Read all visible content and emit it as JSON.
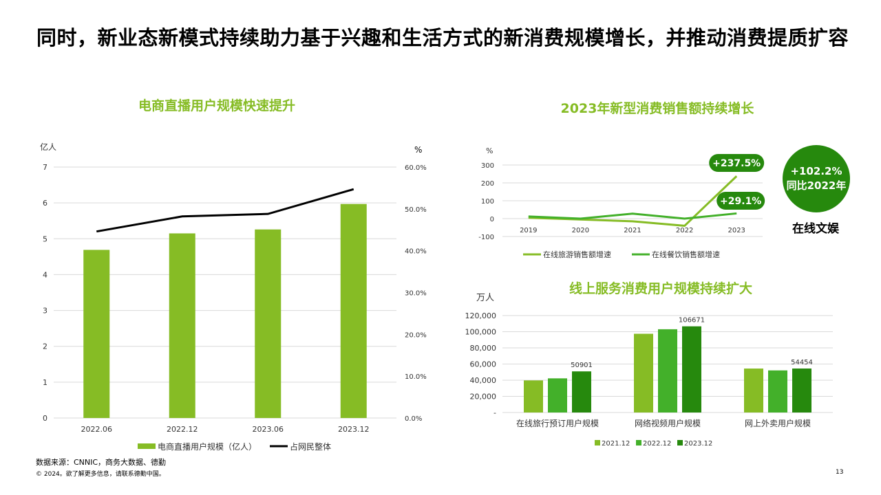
{
  "page": {
    "title": "同时，新业态新模式持续助力基于兴趣和生活方式的新消费规模增长，并推动消费提质扩容",
    "source": "数据来源：CNNIC，商务大数据、德勤",
    "copyright": "© 2024。欲了解更多信息，请联系德勤中国。",
    "page_number": "13",
    "colors": {
      "accent": "#86bc25",
      "mid_green": "#43b02a",
      "dark_green": "#26890d",
      "line": "#000000"
    }
  },
  "highlight": {
    "line1": "+102.2%",
    "line2": "同比2022年",
    "caption": "在线文娱"
  },
  "chart_data": [
    {
      "id": "livestream",
      "type": "bar",
      "title": "电商直播用户规模快速提升",
      "ylabel": "亿人",
      "y2label": "%",
      "categories": [
        "2022.06",
        "2022.12",
        "2023.06",
        "2023.12"
      ],
      "ylim": [
        0,
        7
      ],
      "yticks": [
        "0",
        "1",
        "2",
        "3",
        "4",
        "5",
        "6",
        "7"
      ],
      "y2lim": [
        0,
        60
      ],
      "y2ticks": [
        "0.0%",
        "10.0%",
        "20.0%",
        "30.0%",
        "40.0%",
        "50.0%",
        "60.0%"
      ],
      "series": [
        {
          "name": "电商直播用户规模（亿人）",
          "type": "bar",
          "axis": "left",
          "color": "#86bc25",
          "values": [
            4.69,
            5.15,
            5.26,
            5.97
          ]
        },
        {
          "name": "占网民整体",
          "type": "line",
          "axis": "right",
          "color": "#000000",
          "values": [
            44.6,
            48.2,
            48.8,
            54.7
          ]
        }
      ],
      "legend_position": "bottom",
      "grid": true
    },
    {
      "id": "newconsumption",
      "type": "line",
      "title": "2023年新型消费销售额持续增长",
      "ylabel": "%",
      "categories": [
        "2019",
        "2020",
        "2021",
        "2022",
        "2023"
      ],
      "ylim": [
        -100,
        300
      ],
      "yticks": [
        "-100",
        "0",
        "100",
        "200",
        "300"
      ],
      "series": [
        {
          "name": "在线旅游销售额增速",
          "color": "#86bc25",
          "values": [
            5,
            -5,
            -15,
            -40,
            237.5
          ]
        },
        {
          "name": "在线餐饮销售额增速",
          "color": "#43b02a",
          "values": [
            12,
            0,
            28,
            0,
            29.1
          ]
        }
      ],
      "annotations": [
        "+237.5%",
        "+29.1%"
      ],
      "legend_position": "bottom",
      "grid": true
    },
    {
      "id": "onlineservices",
      "type": "bar",
      "title": "线上服务消费用户规模持续扩大",
      "ylabel": "万人",
      "categories": [
        "在线旅行预订用户规模",
        "网络视频用户规模",
        "网上外卖用户规模"
      ],
      "ylim": [
        0,
        120000
      ],
      "yticks": [
        "-",
        "20,000",
        "40,000",
        "60,000",
        "80,000",
        "100,000",
        "120,000"
      ],
      "series": [
        {
          "name": "2021.12",
          "color": "#86bc25",
          "values": [
            39710,
            97471,
            54416
          ]
        },
        {
          "name": "2022.12",
          "color": "#43b02a",
          "values": [
            42272,
            103057,
            52116
          ]
        },
        {
          "name": "2023.12",
          "color": "#26890d",
          "values": [
            50901,
            106671,
            54454
          ]
        }
      ],
      "data_labels": [
        "50901",
        "106671",
        "54454"
      ],
      "legend_position": "bottom",
      "grid": true
    }
  ]
}
